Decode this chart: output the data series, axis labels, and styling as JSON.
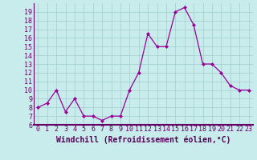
{
  "x": [
    0,
    1,
    2,
    3,
    4,
    5,
    6,
    7,
    8,
    9,
    10,
    11,
    12,
    13,
    14,
    15,
    16,
    17,
    18,
    19,
    20,
    21,
    22,
    23
  ],
  "y": [
    8,
    8.5,
    10,
    7.5,
    9,
    7,
    7,
    6.5,
    7,
    7,
    10,
    12,
    16.5,
    15,
    15,
    19,
    19.5,
    17.5,
    13,
    13,
    12,
    10.5,
    10,
    10
  ],
  "line_color": "#990099",
  "marker": "D",
  "markersize": 2.0,
  "linewidth": 0.9,
  "xlabel": "Windchill (Refroidissement éolien,°C)",
  "xlabel_fontsize": 7,
  "yticks": [
    6,
    7,
    8,
    9,
    10,
    11,
    12,
    13,
    14,
    15,
    16,
    17,
    18,
    19
  ],
  "xticks": [
    0,
    1,
    2,
    3,
    4,
    5,
    6,
    7,
    8,
    9,
    10,
    11,
    12,
    13,
    14,
    15,
    16,
    17,
    18,
    19,
    20,
    21,
    22,
    23
  ],
  "ylim": [
    6,
    20
  ],
  "xlim": [
    -0.5,
    23.5
  ],
  "bg_color": "#c8ecec",
  "grid_color": "#a0cccc",
  "tick_fontsize": 6,
  "spine_color": "#660066",
  "xlabel_color": "#550055"
}
